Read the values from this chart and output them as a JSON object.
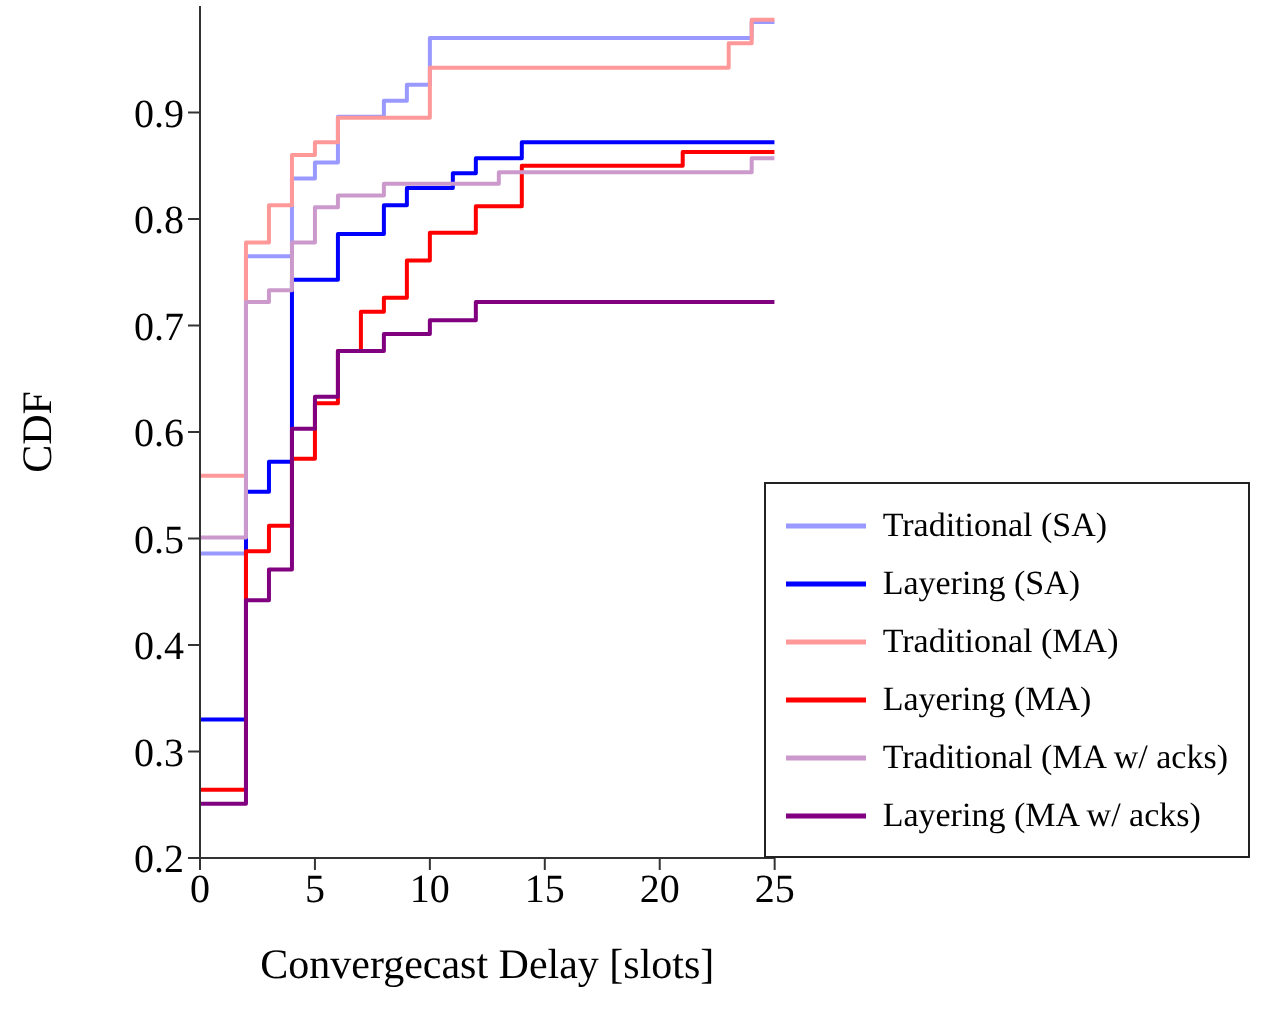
{
  "chart_data": {
    "type": "step",
    "xlabel": "Convergecast Delay [slots]",
    "ylabel": "CDF",
    "xlim": [
      0,
      25
    ],
    "xticks": [
      0,
      5,
      10,
      15,
      20,
      25
    ],
    "ylim": [
      0.2,
      1.0
    ],
    "yticks": [
      {
        "value": 0.2,
        "label": "0.2"
      },
      {
        "value": 0.3,
        "label": "0.3"
      },
      {
        "value": 0.4,
        "label": "0.4"
      },
      {
        "value": 0.5,
        "label": "0.5"
      },
      {
        "value": 0.6,
        "label": "0.6"
      },
      {
        "value": 0.7,
        "label": "0.7"
      },
      {
        "value": 0.8,
        "label": "0.8"
      },
      {
        "value": 0.9,
        "label": "0.9"
      }
    ],
    "grid": false,
    "legend": "bottom right",
    "marker": "none",
    "line_style": "solid",
    "series": [
      {
        "name": "Traditional (SA)",
        "color": "#9999ff",
        "x": [
          0,
          2,
          4,
          5,
          6,
          8,
          9,
          10,
          24,
          25
        ],
        "values": [
          0.486,
          0.765,
          0.838,
          0.853,
          0.896,
          0.911,
          0.926,
          0.97,
          0.985,
          0.985
        ]
      },
      {
        "name": "Layering (SA)",
        "color": "#0000ff",
        "x": [
          0,
          2,
          3,
          4,
          6,
          8,
          9,
          11,
          12,
          14,
          25
        ],
        "values": [
          0.33,
          0.544,
          0.572,
          0.743,
          0.786,
          0.813,
          0.829,
          0.843,
          0.857,
          0.872,
          0.872
        ]
      },
      {
        "name": "Traditional (MA)",
        "color": "#ff9999",
        "x": [
          0,
          2,
          3,
          4,
          5,
          6,
          10,
          23,
          24,
          25
        ],
        "values": [
          0.559,
          0.778,
          0.813,
          0.86,
          0.872,
          0.895,
          0.942,
          0.965,
          0.987,
          0.987
        ]
      },
      {
        "name": "Layering (MA)",
        "color": "#ff0000",
        "x": [
          0,
          2,
          3,
          4,
          5,
          6,
          7,
          8,
          9,
          10,
          12,
          14,
          21,
          25
        ],
        "values": [
          0.264,
          0.488,
          0.512,
          0.575,
          0.627,
          0.676,
          0.713,
          0.726,
          0.761,
          0.787,
          0.812,
          0.85,
          0.863,
          0.863
        ]
      },
      {
        "name": "Traditional (MA w/ acks)",
        "color": "#cc99cc",
        "x": [
          0,
          2,
          3,
          4,
          5,
          6,
          8,
          13,
          24,
          25
        ],
        "values": [
          0.501,
          0.722,
          0.733,
          0.778,
          0.811,
          0.822,
          0.833,
          0.844,
          0.857,
          0.857
        ]
      },
      {
        "name": "Layering (MA w/ acks)",
        "color": "#800080",
        "x": [
          0,
          2,
          3,
          4,
          5,
          6,
          8,
          10,
          12,
          25
        ],
        "values": [
          0.251,
          0.442,
          0.471,
          0.603,
          0.633,
          0.676,
          0.692,
          0.705,
          0.722,
          0.722
        ]
      }
    ]
  }
}
